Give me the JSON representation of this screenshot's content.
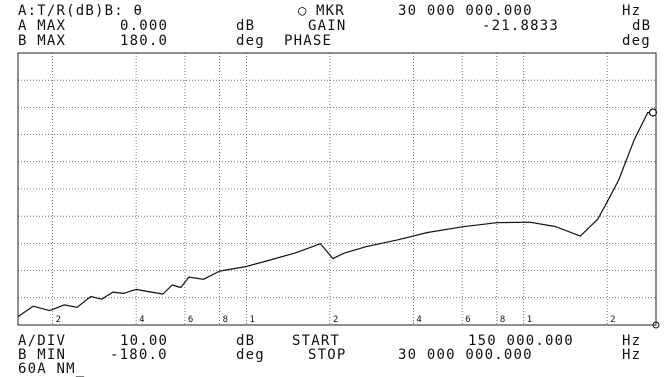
{
  "header": {
    "mode": "A:T/R(dB)B: θ",
    "marker_symbol": "○",
    "marker_label": "MKR",
    "marker_freq": "30 000 000.000",
    "marker_freq_unit": "Hz",
    "a_max_label": "A MAX",
    "a_max_value": "0.000",
    "a_unit": "dB",
    "gain_label": "GAIN",
    "gain_value": "-21.8833",
    "gain_unit": "dB",
    "b_max_label": "B MAX",
    "b_max_value": "180.0",
    "b_unit": "deg",
    "phase_label": "PHASE",
    "phase_unit": "deg"
  },
  "footer": {
    "a_div_label": "A/DIV",
    "a_div_value": "10.00",
    "a_div_unit": "dB",
    "start_label": "START",
    "start_value": "150 000.000",
    "start_unit": "Hz",
    "b_min_label": "B MIN",
    "b_min_value": "-180.0",
    "b_min_unit": "deg",
    "stop_label": "STOP",
    "stop_value": "30 000 000.000",
    "stop_unit": "Hz",
    "status": "60A NM_"
  },
  "chart_data": {
    "type": "line",
    "x_scale": "log",
    "xlim": [
      150000,
      30000000
    ],
    "ylim": [
      -100,
      0
    ],
    "y_unit": "dB",
    "grid": true,
    "x_tick_labels": [
      {
        "x": 200000,
        "label": "2"
      },
      {
        "x": 400000,
        "label": "4"
      },
      {
        "x": 600000,
        "label": "6"
      },
      {
        "x": 800000,
        "label": "8"
      },
      {
        "x": 1000000,
        "label": "1"
      },
      {
        "x": 2000000,
        "label": "2"
      },
      {
        "x": 4000000,
        "label": "4"
      },
      {
        "x": 6000000,
        "label": "6"
      },
      {
        "x": 8000000,
        "label": "8"
      },
      {
        "x": 10000000,
        "label": "1"
      },
      {
        "x": 20000000,
        "label": "2"
      }
    ],
    "series": [
      {
        "x": [
          150000,
          170000,
          195000,
          220000,
          245000,
          275000,
          300000,
          330000,
          360000,
          400000,
          440000,
          500000,
          540000,
          580000,
          620000,
          700000,
          800000,
          1000000,
          1200000,
          1500000,
          1850000,
          2050000,
          2250000,
          2700000,
          3500000,
          4500000,
          6000000,
          8000000,
          10500000,
          13000000,
          16000000,
          18500000,
          20000000,
          22000000,
          25000000,
          28000000,
          30000000
        ],
        "y": [
          -96.9,
          -93.1,
          -94.7,
          -92.6,
          -93.5,
          -89.5,
          -90.5,
          -87.9,
          -88.4,
          -86.9,
          -87.7,
          -88.6,
          -85.3,
          -86.2,
          -82.4,
          -83.2,
          -80.2,
          -78.5,
          -76.3,
          -73.5,
          -70.1,
          -75.6,
          -73.6,
          -71.2,
          -68.7,
          -66.0,
          -63.9,
          -62.4,
          -62.2,
          -63.8,
          -67.3,
          -61.1,
          -54.7,
          -46.7,
          -32.1,
          -21.9,
          -21.9
        ]
      }
    ],
    "marker": {
      "x": 30000000,
      "y": -21.8833
    }
  }
}
